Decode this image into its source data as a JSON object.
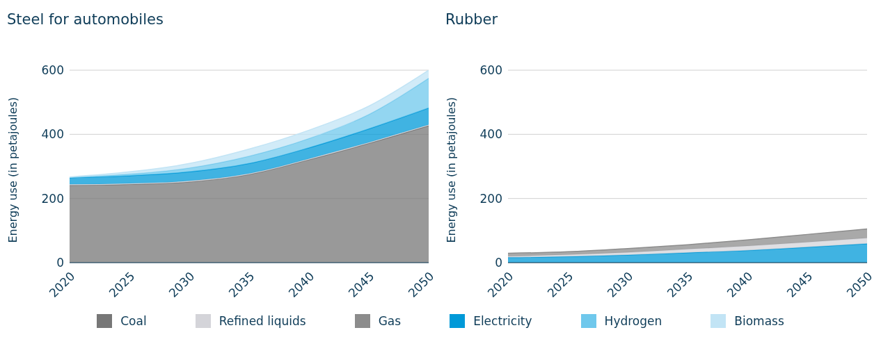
{
  "chart_data": [
    {
      "type": "area",
      "title": "Steel for automobiles",
      "ylabel": "Energy use (in petajoules)",
      "x": [
        2020,
        2025,
        2030,
        2035,
        2040,
        2045,
        2050
      ],
      "xlim": [
        2020,
        2050
      ],
      "xticks": [
        2020,
        2025,
        2030,
        2035,
        2040,
        2045,
        2050
      ],
      "ylim": [
        0,
        600
      ],
      "yticks": [
        0,
        200,
        400,
        600
      ],
      "grid": "y",
      "stacked": true,
      "legend": "bottom",
      "series": [
        {
          "name": "Coal",
          "color": "#777777",
          "values": [
            241,
            244,
            252,
            275,
            321,
            372,
            427
          ]
        },
        {
          "name": "Refined liquids",
          "color": "#d4d4d9",
          "values": [
            3,
            3,
            3,
            3,
            3,
            3,
            3
          ]
        },
        {
          "name": "Gas",
          "color": "#8c8c8c",
          "values": [
            null,
            null,
            null,
            null,
            null,
            null,
            null
          ]
        },
        {
          "name": "Electricity",
          "color": "#0099d8",
          "values": [
            21,
            24,
            28,
            31,
            34,
            42,
            52
          ]
        },
        {
          "name": "Hydrogen",
          "color": "#6fc8ec",
          "values": [
            1,
            5,
            12,
            23,
            29,
            45,
            93
          ]
        },
        {
          "name": "Biomass",
          "color": "#c2e4f5",
          "values": [
            1,
            7,
            14,
            22,
            26,
            26,
            25
          ]
        }
      ]
    },
    {
      "type": "area",
      "title": "Rubber",
      "ylabel": "Energy use (in petajoules)",
      "x": [
        2020,
        2025,
        2030,
        2035,
        2040,
        2045,
        2050
      ],
      "xlim": [
        2020,
        2050
      ],
      "xticks": [
        2020,
        2025,
        2030,
        2035,
        2040,
        2045,
        2050
      ],
      "ylim": [
        0,
        600
      ],
      "yticks": [
        0,
        200,
        400,
        600
      ],
      "grid": "y",
      "stacked": true,
      "series": [
        {
          "color": "#0099d8",
          "values": [
            16,
            19,
            24,
            31,
            38,
            48,
            59
          ]
        },
        {
          "color": "#d4d4d9",
          "values": [
            4,
            6,
            8,
            11,
            14,
            16,
            18
          ]
        },
        {
          "color": "#8c8c8c",
          "values": [
            9,
            9,
            12,
            14,
            19,
            24,
            28
          ]
        }
      ]
    }
  ]
}
